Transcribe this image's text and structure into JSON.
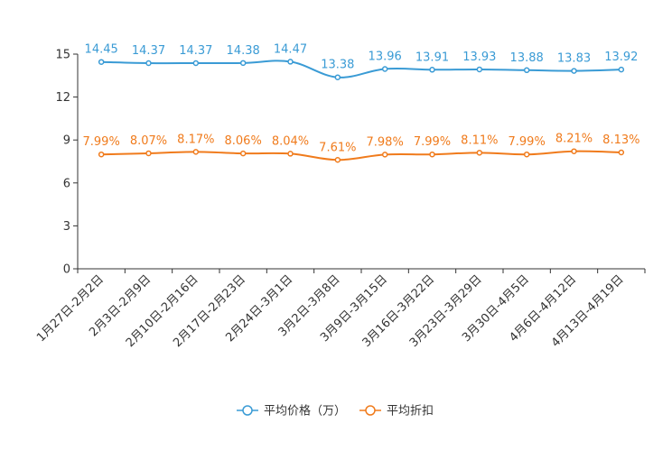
{
  "chart_data": {
    "type": "line",
    "title": "",
    "xlabel": "",
    "ylabel": "",
    "ylim": [
      0,
      15
    ],
    "yticks": [
      0,
      3,
      6,
      9,
      12,
      15
    ],
    "grid": false,
    "legend_position": "bottom-center",
    "categories": [
      "1月27日-2月2日",
      "2月3日-2月9日",
      "2月10日-2月16日",
      "2月17日-2月23日",
      "2月24日-3月1日",
      "3月2日-3月8日",
      "3月9日-3月15日",
      "3月16日-3月22日",
      "3月23日-3月29日",
      "3月30日-4月5日",
      "4月6日-4月12日",
      "4月13日-4月19日"
    ],
    "series": [
      {
        "name": "平均价格（万）",
        "color": "#3a9bd5",
        "values": [
          14.45,
          14.37,
          14.37,
          14.38,
          14.47,
          13.38,
          13.96,
          13.91,
          13.93,
          13.88,
          13.83,
          13.92
        ],
        "labels": [
          "14.45",
          "14.37",
          "14.37",
          "14.38",
          "14.47",
          "13.38",
          "13.96",
          "13.91",
          "13.93",
          "13.88",
          "13.83",
          "13.92"
        ]
      },
      {
        "name": "平均折扣",
        "color": "#f07b1c",
        "values": [
          7.99,
          8.07,
          8.17,
          8.06,
          8.04,
          7.61,
          7.98,
          7.99,
          8.11,
          7.99,
          8.21,
          8.13
        ],
        "labels": [
          "7.99%",
          "8.07%",
          "8.17%",
          "8.06%",
          "8.04%",
          "7.61%",
          "7.98%",
          "7.99%",
          "8.11%",
          "7.99%",
          "8.21%",
          "8.13%"
        ]
      }
    ]
  }
}
